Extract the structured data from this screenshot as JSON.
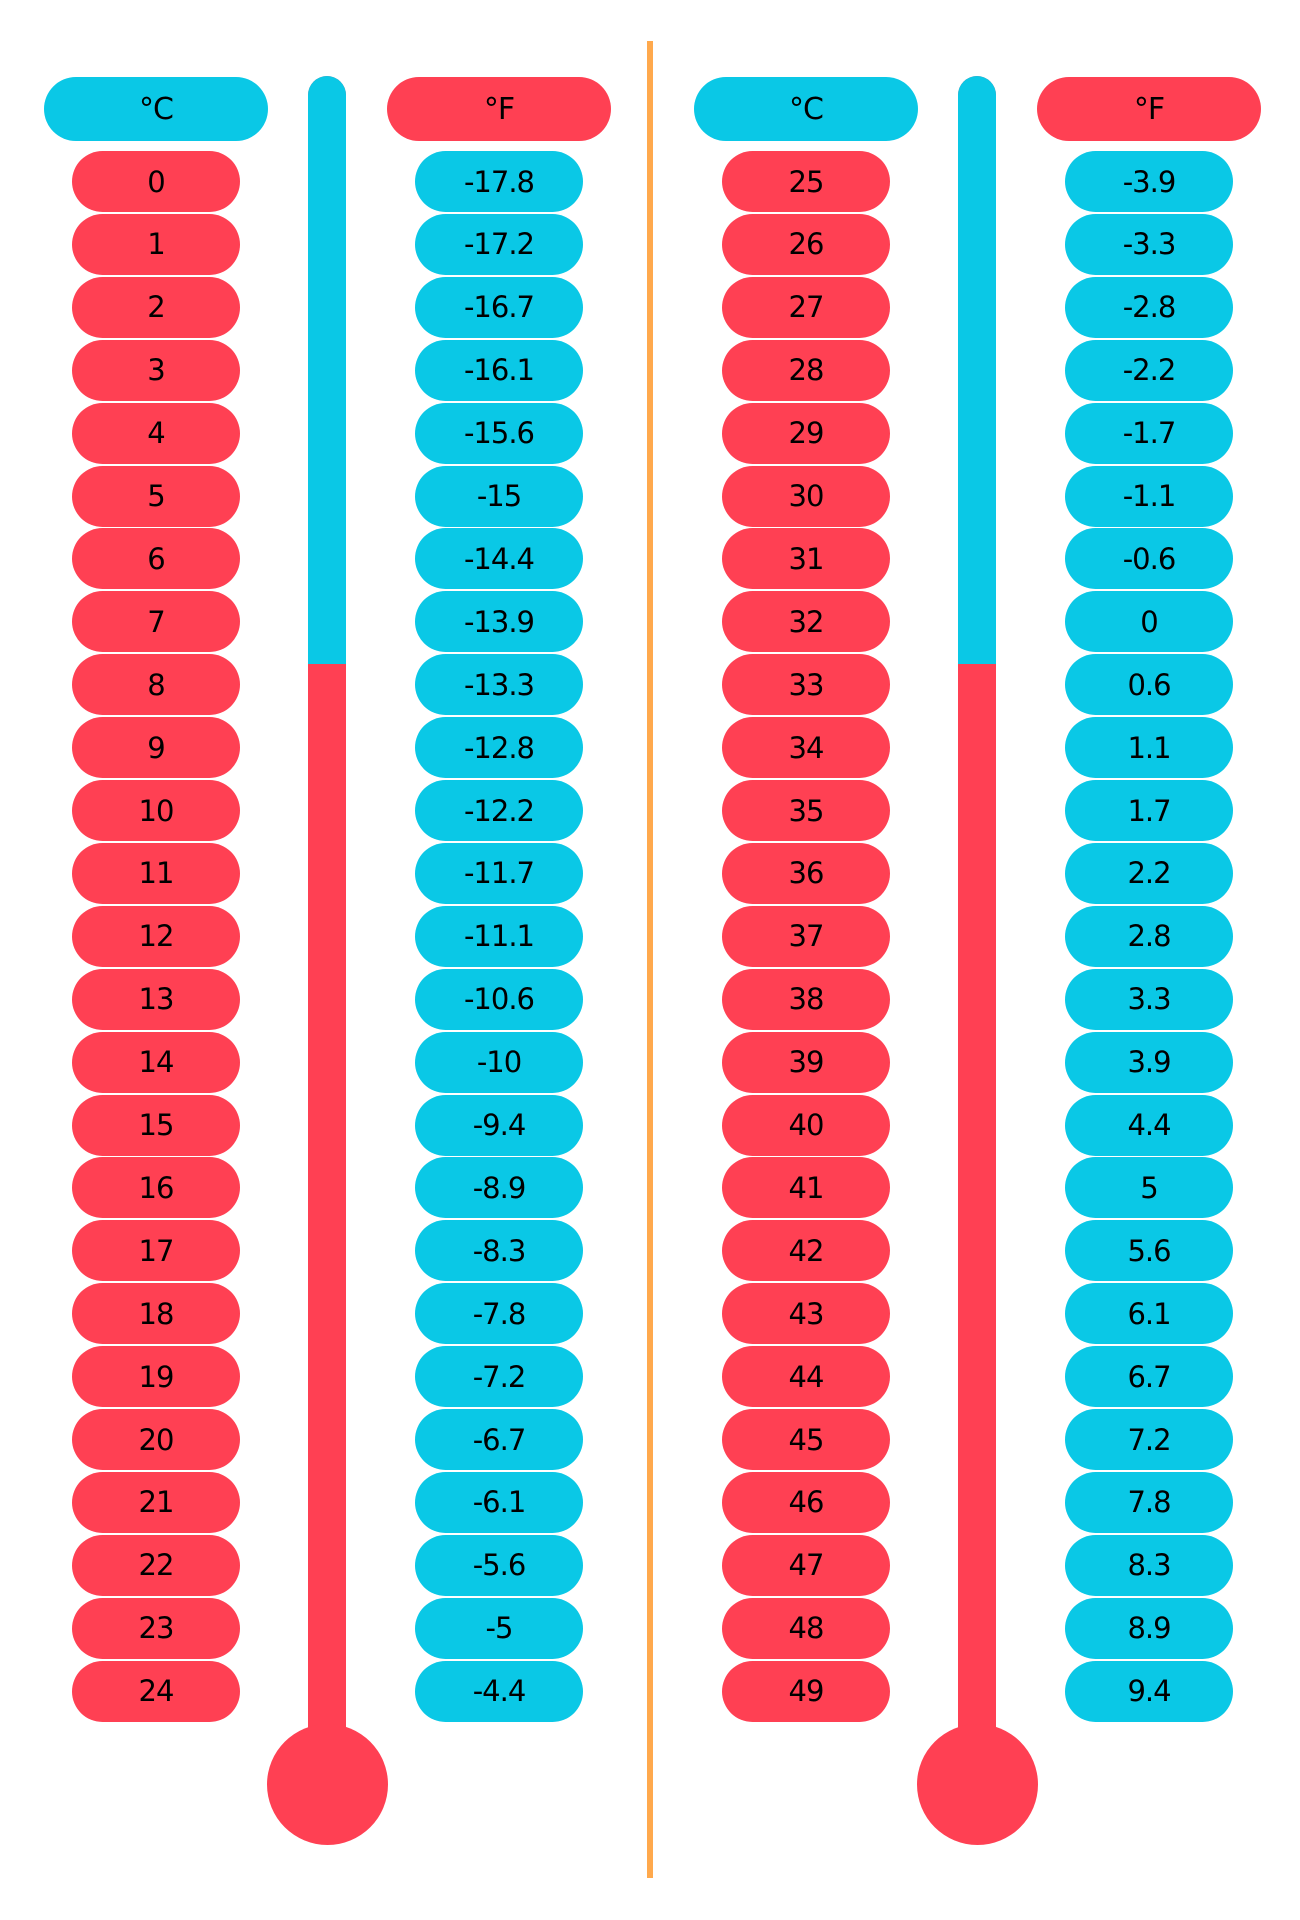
{
  "colors": {
    "cyan": "#0ac8e6",
    "red": "#ff4053",
    "divider": "#ffa94d"
  },
  "panels": [
    {
      "celsius_header": "°C",
      "fahrenheit_header": "°F",
      "celsius": [
        "0",
        "1",
        "2",
        "3",
        "4",
        "5",
        "6",
        "7",
        "8",
        "9",
        "10",
        "11",
        "12",
        "13",
        "14",
        "15",
        "16",
        "17",
        "18",
        "19",
        "20",
        "21",
        "22",
        "23",
        "24"
      ],
      "fahrenheit": [
        "-17.8",
        "-17.2",
        "-16.7",
        "-16.1",
        "-15.6",
        "-15",
        "-14.4",
        "-13.9",
        "-13.3",
        "-12.8",
        "-12.2",
        "-11.7",
        "-11.1",
        "-10.6",
        "-10",
        "-9.4",
        "-8.9",
        "-8.3",
        "-7.8",
        "-7.2",
        "-6.7",
        "-6.1",
        "-5.6",
        "-5",
        "-4.4"
      ]
    },
    {
      "celsius_header": "°C",
      "fahrenheit_header": "°F",
      "celsius": [
        "25",
        "26",
        "27",
        "28",
        "29",
        "30",
        "31",
        "32",
        "33",
        "34",
        "35",
        "36",
        "37",
        "38",
        "39",
        "40",
        "41",
        "42",
        "43",
        "44",
        "45",
        "46",
        "47",
        "48",
        "49"
      ],
      "fahrenheit": [
        "-3.9",
        "-3.3",
        "-2.8",
        "-2.2",
        "-1.7",
        "-1.1",
        "-0.6",
        "0",
        "0.6",
        "1.1",
        "1.7",
        "2.2",
        "2.8",
        "3.3",
        "3.9",
        "4.4",
        "5",
        "5.6",
        "6.1",
        "6.7",
        "7.2",
        "7.8",
        "8.3",
        "8.9",
        "9.4"
      ]
    }
  ],
  "chart_data": {
    "type": "table",
    "title": "",
    "columns": [
      "°C",
      "°F"
    ],
    "rows": [
      [
        "0",
        "-17.8"
      ],
      [
        "1",
        "-17.2"
      ],
      [
        "2",
        "-16.7"
      ],
      [
        "3",
        "-16.1"
      ],
      [
        "4",
        "-15.6"
      ],
      [
        "5",
        "-15"
      ],
      [
        "6",
        "-14.4"
      ],
      [
        "7",
        "-13.9"
      ],
      [
        "8",
        "-13.3"
      ],
      [
        "9",
        "-12.8"
      ],
      [
        "10",
        "-12.2"
      ],
      [
        "11",
        "-11.7"
      ],
      [
        "12",
        "-11.1"
      ],
      [
        "13",
        "-10.6"
      ],
      [
        "14",
        "-10"
      ],
      [
        "15",
        "-9.4"
      ],
      [
        "16",
        "-8.9"
      ],
      [
        "17",
        "-8.3"
      ],
      [
        "18",
        "-7.8"
      ],
      [
        "19",
        "-7.2"
      ],
      [
        "20",
        "-6.7"
      ],
      [
        "21",
        "-6.1"
      ],
      [
        "22",
        "-5.6"
      ],
      [
        "23",
        "-5"
      ],
      [
        "24",
        "-4.4"
      ],
      [
        "25",
        "-3.9"
      ],
      [
        "26",
        "-3.3"
      ],
      [
        "27",
        "-2.8"
      ],
      [
        "28",
        "-2.2"
      ],
      [
        "29",
        "-1.7"
      ],
      [
        "30",
        "-1.1"
      ],
      [
        "31",
        "-0.6"
      ],
      [
        "32",
        "0"
      ],
      [
        "33",
        "0.6"
      ],
      [
        "34",
        "1.1"
      ],
      [
        "35",
        "1.7"
      ],
      [
        "36",
        "2.2"
      ],
      [
        "37",
        "2.8"
      ],
      [
        "38",
        "3.3"
      ],
      [
        "39",
        "3.9"
      ],
      [
        "40",
        "4.4"
      ],
      [
        "41",
        "5"
      ],
      [
        "42",
        "5.6"
      ],
      [
        "43",
        "6.1"
      ],
      [
        "44",
        "6.7"
      ],
      [
        "45",
        "7.2"
      ],
      [
        "46",
        "7.8"
      ],
      [
        "47",
        "8.3"
      ],
      [
        "48",
        "8.9"
      ],
      [
        "49",
        "9.4"
      ]
    ],
    "layout": "two side-by-side thermometer panels, 25 rows each"
  }
}
